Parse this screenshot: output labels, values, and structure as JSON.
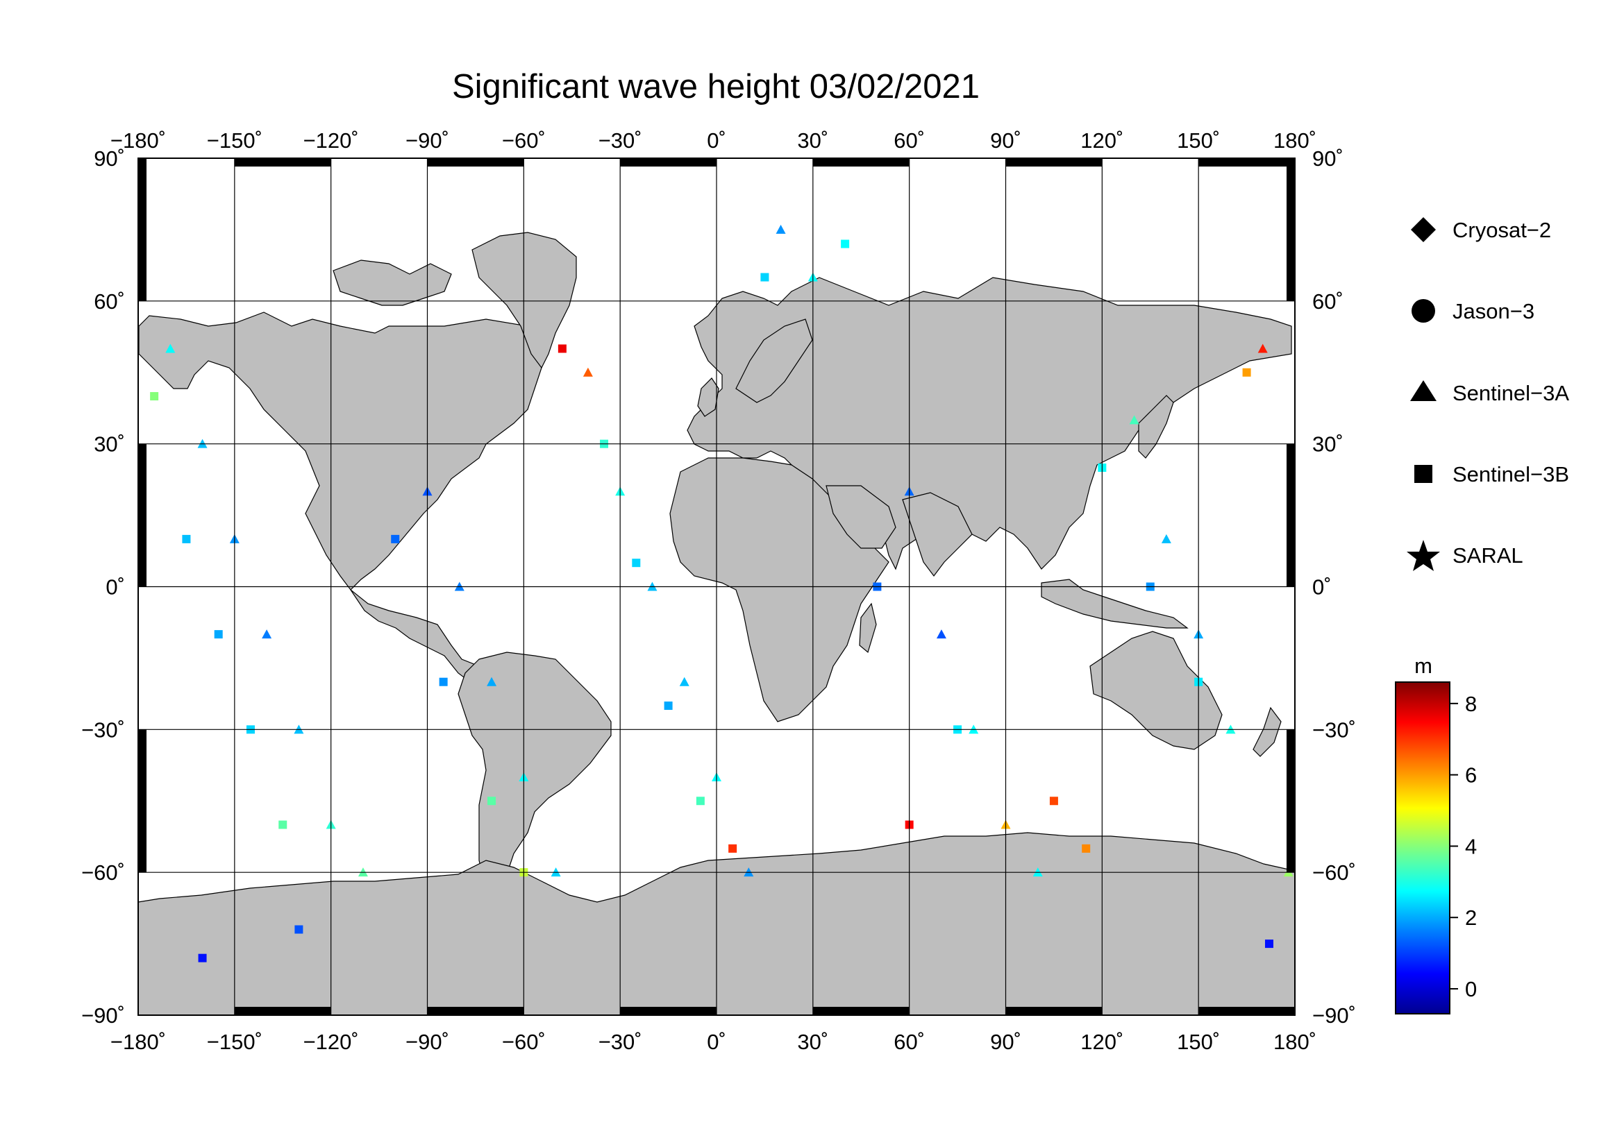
{
  "title": "Significant wave height 03/02/2021",
  "axes": {
    "lon_ticks": [
      "−180˚",
      "−150˚",
      "−120˚",
      "−90˚",
      "−60˚",
      "−30˚",
      "0˚",
      "30˚",
      "60˚",
      "90˚",
      "120˚",
      "150˚",
      "180˚"
    ],
    "lat_ticks": [
      "90˚",
      "60˚",
      "30˚",
      "0˚",
      "−30˚",
      "−60˚",
      "−90˚"
    ],
    "lon_range": [
      -180,
      180
    ],
    "lat_range": [
      -90,
      90
    ]
  },
  "legend": {
    "placement": "right",
    "items": [
      {
        "label": "Cryosat−2",
        "marker": "diamond"
      },
      {
        "label": "Jason−3",
        "marker": "circle"
      },
      {
        "label": "Sentinel−3A",
        "marker": "triangle"
      },
      {
        "label": "Sentinel−3B",
        "marker": "square"
      },
      {
        "label": "SARAL",
        "marker": "star"
      }
    ]
  },
  "colorbar": {
    "unit": "m",
    "ticks": [
      "8",
      "6",
      "4",
      "2",
      "0"
    ],
    "range": [
      -0.7,
      8.6
    ],
    "colormap": [
      "#00008f",
      "#0000ff",
      "#0080ff",
      "#00ffff",
      "#80ff80",
      "#ffff00",
      "#ff8000",
      "#ff0000",
      "#800000"
    ]
  },
  "colors": {
    "land": "#bebebe",
    "ocean": "#ffffff",
    "frame": "#000000"
  },
  "chart_data": {
    "type": "scatter",
    "title": "Significant wave height 03/02/2021",
    "xlabel": "",
    "ylabel": "",
    "xlim": [
      -180,
      180
    ],
    "ylim": [
      -90,
      90
    ],
    "colorbar_unit": "m",
    "series": [
      {
        "name": "Sentinel−3A",
        "marker": "triangle",
        "points": [
          [
            -170,
            50,
            2.8
          ],
          [
            -160,
            30,
            2.2
          ],
          [
            -150,
            10,
            1.8
          ],
          [
            -140,
            -10,
            1.6
          ],
          [
            -130,
            -30,
            2.2
          ],
          [
            -120,
            -50,
            3.2
          ],
          [
            -110,
            -60,
            3.6
          ],
          [
            -90,
            20,
            1.2
          ],
          [
            -80,
            0,
            1.6
          ],
          [
            -70,
            -20,
            2.0
          ],
          [
            -60,
            -40,
            2.8
          ],
          [
            -50,
            -60,
            2.4
          ],
          [
            -40,
            45,
            6.6
          ],
          [
            -30,
            20,
            3.0
          ],
          [
            -20,
            0,
            2.2
          ],
          [
            -10,
            -20,
            2.2
          ],
          [
            0,
            -40,
            2.8
          ],
          [
            10,
            -60,
            1.8
          ],
          [
            20,
            75,
            1.8
          ],
          [
            30,
            65,
            2.8
          ],
          [
            60,
            20,
            1.4
          ],
          [
            70,
            -10,
            1.2
          ],
          [
            80,
            -30,
            2.8
          ],
          [
            90,
            -50,
            5.8
          ],
          [
            100,
            -60,
            2.8
          ],
          [
            130,
            35,
            3.4
          ],
          [
            140,
            10,
            2.2
          ],
          [
            150,
            -10,
            2.0
          ],
          [
            160,
            -30,
            3.0
          ],
          [
            170,
            50,
            7.2
          ],
          [
            178,
            -60,
            4.2
          ]
        ]
      },
      {
        "name": "Sentinel−3B",
        "marker": "square",
        "points": [
          [
            -175,
            40,
            4.0
          ],
          [
            -165,
            10,
            2.2
          ],
          [
            -155,
            -10,
            2.0
          ],
          [
            -145,
            -30,
            2.4
          ],
          [
            -135,
            -50,
            3.6
          ],
          [
            -160,
            -78,
            0.6
          ],
          [
            -130,
            -72,
            1.2
          ],
          [
            -100,
            10,
            1.4
          ],
          [
            -85,
            -20,
            1.8
          ],
          [
            -70,
            -45,
            3.6
          ],
          [
            -60,
            -60,
            4.6
          ],
          [
            -48,
            50,
            7.6
          ],
          [
            -35,
            30,
            3.2
          ],
          [
            -25,
            5,
            2.4
          ],
          [
            -15,
            -25,
            2.0
          ],
          [
            -5,
            -45,
            3.4
          ],
          [
            5,
            -55,
            7.0
          ],
          [
            15,
            65,
            2.4
          ],
          [
            40,
            72,
            2.8
          ],
          [
            50,
            0,
            1.4
          ],
          [
            60,
            -50,
            7.4
          ],
          [
            75,
            -30,
            2.6
          ],
          [
            105,
            -45,
            6.8
          ],
          [
            115,
            -55,
            6.2
          ],
          [
            120,
            25,
            2.8
          ],
          [
            135,
            0,
            1.8
          ],
          [
            150,
            -20,
            2.6
          ],
          [
            165,
            45,
            6.0
          ],
          [
            172,
            -75,
            0.6
          ]
        ]
      }
    ]
  }
}
